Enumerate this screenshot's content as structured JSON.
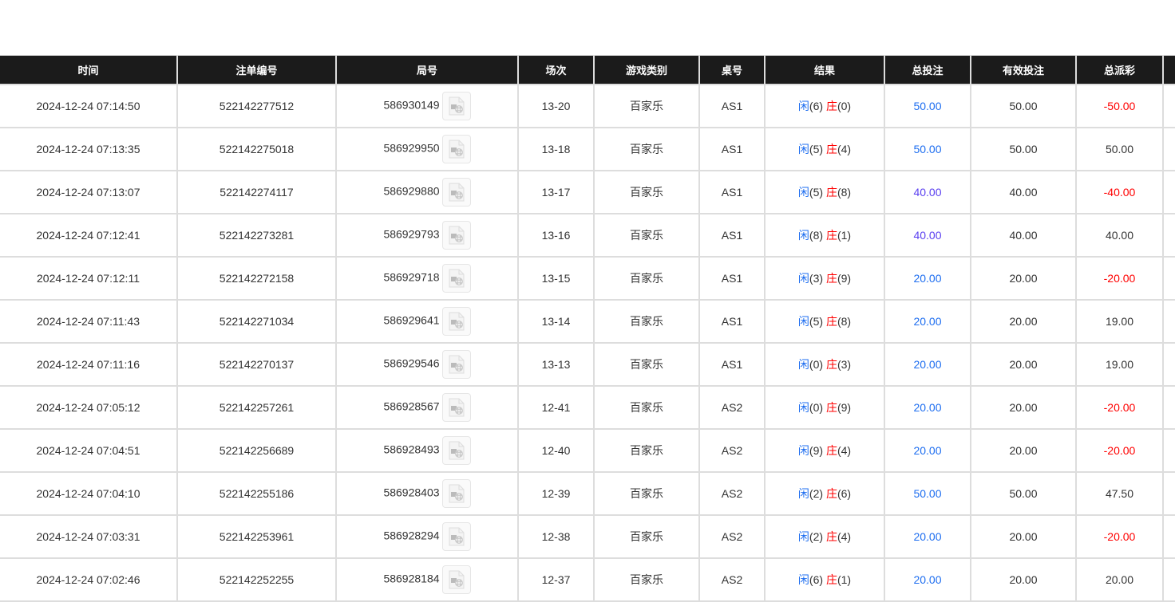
{
  "headers": [
    "时间",
    "注单编号",
    "局号",
    "场次",
    "游戏类别",
    "桌号",
    "结果",
    "总投注",
    "有效投注",
    "总派彩",
    ""
  ],
  "colors": {
    "header_bg": "#1b1b1b",
    "bet_blue": "#1e6ef0",
    "bet_purple": "#5a3ff0",
    "loss_red": "#ff0000",
    "player": "#1e6ef0",
    "banker": "#ff0000"
  },
  "player_label": "闲",
  "banker_label": "庄",
  "rows": [
    {
      "time": "2024-12-24 07:14:50",
      "bet_id": "522142277512",
      "round": "586930149",
      "shoe": "13-20",
      "game": "百家乐",
      "table": "AS1",
      "player": "(6)",
      "banker": "(0)",
      "total_bet": "50.00",
      "bet_color": "blue",
      "valid_bet": "50.00",
      "payout": "-50.00",
      "payout_red": true
    },
    {
      "time": "2024-12-24 07:13:35",
      "bet_id": "522142275018",
      "round": "586929950",
      "shoe": "13-18",
      "game": "百家乐",
      "table": "AS1",
      "player": "(5)",
      "banker": "(4)",
      "total_bet": "50.00",
      "bet_color": "blue",
      "valid_bet": "50.00",
      "payout": "50.00",
      "payout_red": false
    },
    {
      "time": "2024-12-24 07:13:07",
      "bet_id": "522142274117",
      "round": "586929880",
      "shoe": "13-17",
      "game": "百家乐",
      "table": "AS1",
      "player": "(5)",
      "banker": "(8)",
      "total_bet": "40.00",
      "bet_color": "purple",
      "valid_bet": "40.00",
      "payout": "-40.00",
      "payout_red": true
    },
    {
      "time": "2024-12-24 07:12:41",
      "bet_id": "522142273281",
      "round": "586929793",
      "shoe": "13-16",
      "game": "百家乐",
      "table": "AS1",
      "player": "(8)",
      "banker": "(1)",
      "total_bet": "40.00",
      "bet_color": "purple",
      "valid_bet": "40.00",
      "payout": "40.00",
      "payout_red": false
    },
    {
      "time": "2024-12-24 07:12:11",
      "bet_id": "522142272158",
      "round": "586929718",
      "shoe": "13-15",
      "game": "百家乐",
      "table": "AS1",
      "player": "(3)",
      "banker": "(9)",
      "total_bet": "20.00",
      "bet_color": "blue",
      "valid_bet": "20.00",
      "payout": "-20.00",
      "payout_red": true
    },
    {
      "time": "2024-12-24 07:11:43",
      "bet_id": "522142271034",
      "round": "586929641",
      "shoe": "13-14",
      "game": "百家乐",
      "table": "AS1",
      "player": "(5)",
      "banker": "(8)",
      "total_bet": "20.00",
      "bet_color": "blue",
      "valid_bet": "20.00",
      "payout": "19.00",
      "payout_red": false
    },
    {
      "time": "2024-12-24 07:11:16",
      "bet_id": "522142270137",
      "round": "586929546",
      "shoe": "13-13",
      "game": "百家乐",
      "table": "AS1",
      "player": "(0)",
      "banker": "(3)",
      "total_bet": "20.00",
      "bet_color": "blue",
      "valid_bet": "20.00",
      "payout": "19.00",
      "payout_red": false
    },
    {
      "time": "2024-12-24 07:05:12",
      "bet_id": "522142257261",
      "round": "586928567",
      "shoe": "12-41",
      "game": "百家乐",
      "table": "AS2",
      "player": "(0)",
      "banker": "(9)",
      "total_bet": "20.00",
      "bet_color": "blue",
      "valid_bet": "20.00",
      "payout": "-20.00",
      "payout_red": true
    },
    {
      "time": "2024-12-24 07:04:51",
      "bet_id": "522142256689",
      "round": "586928493",
      "shoe": "12-40",
      "game": "百家乐",
      "table": "AS2",
      "player": "(9)",
      "banker": "(4)",
      "total_bet": "20.00",
      "bet_color": "blue",
      "valid_bet": "20.00",
      "payout": "-20.00",
      "payout_red": true
    },
    {
      "time": "2024-12-24 07:04:10",
      "bet_id": "522142255186",
      "round": "586928403",
      "shoe": "12-39",
      "game": "百家乐",
      "table": "AS2",
      "player": "(2)",
      "banker": "(6)",
      "total_bet": "50.00",
      "bet_color": "blue",
      "valid_bet": "50.00",
      "payout": "47.50",
      "payout_red": false
    },
    {
      "time": "2024-12-24 07:03:31",
      "bet_id": "522142253961",
      "round": "586928294",
      "shoe": "12-38",
      "game": "百家乐",
      "table": "AS2",
      "player": "(2)",
      "banker": "(4)",
      "total_bet": "20.00",
      "bet_color": "blue",
      "valid_bet": "20.00",
      "payout": "-20.00",
      "payout_red": true
    },
    {
      "time": "2024-12-24 07:02:46",
      "bet_id": "522142252255",
      "round": "586928184",
      "shoe": "12-37",
      "game": "百家乐",
      "table": "AS2",
      "player": "(6)",
      "banker": "(1)",
      "total_bet": "20.00",
      "bet_color": "blue",
      "valid_bet": "20.00",
      "payout": "20.00",
      "payout_red": false
    }
  ]
}
